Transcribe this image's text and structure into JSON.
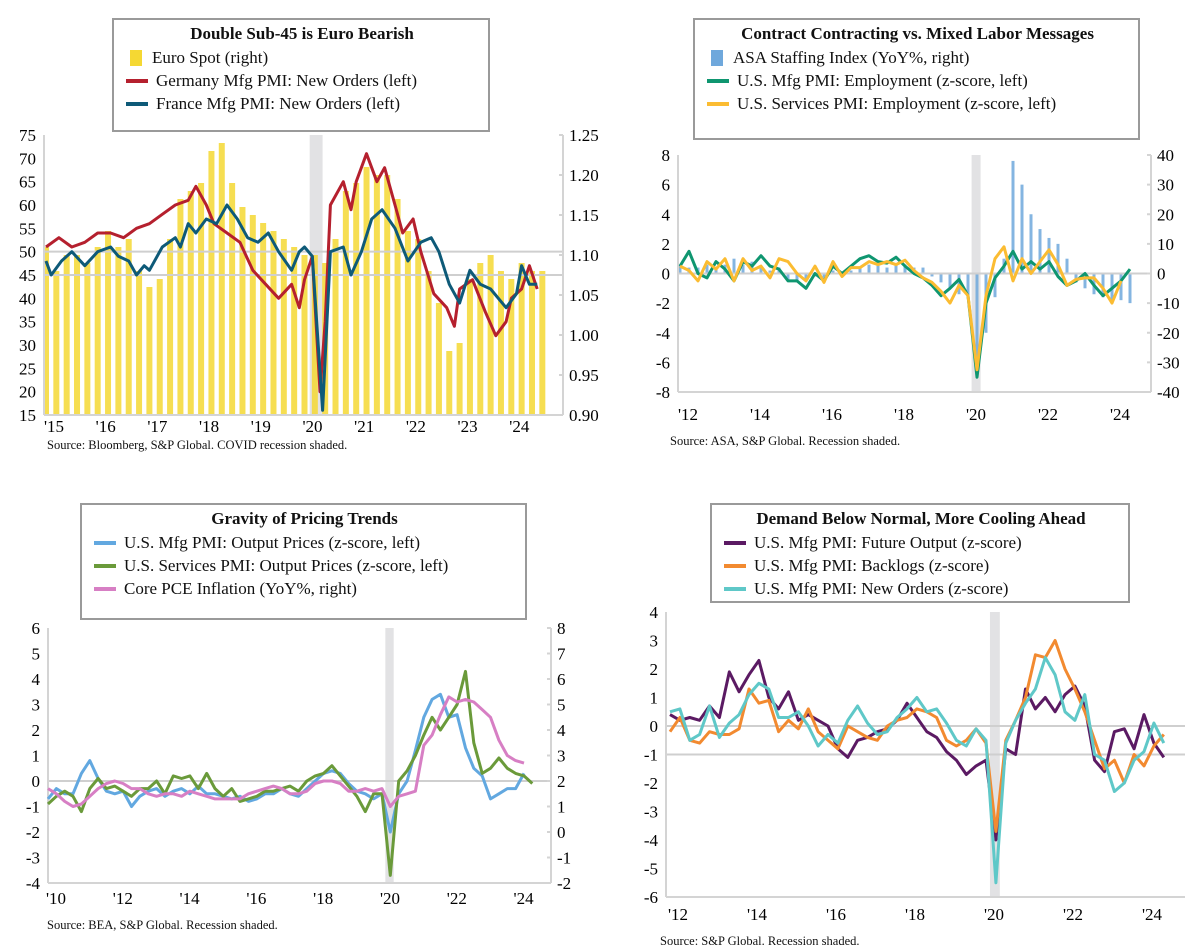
{
  "chart_data": [
    {
      "type": "bar+line",
      "title": "Double Sub-45 is Euro Bearish",
      "source": "Source: Bloomberg, S&P Global. COVID recession shaded.",
      "x_tick_labels": [
        "'15",
        "'16",
        "'17",
        "'18",
        "'19",
        "'20",
        "'21",
        "'22",
        "'23",
        "'24"
      ],
      "x_tick_years": [
        2015,
        2016,
        2017,
        2018,
        2019,
        2020,
        2021,
        2022,
        2023,
        2024
      ],
      "ylim_left": [
        15,
        75
      ],
      "y_ticks_left": [
        "75",
        "70",
        "65",
        "60",
        "55",
        "50",
        "45",
        "40",
        "35",
        "30",
        "25",
        "20",
        "15"
      ],
      "ylim_right": [
        0.9,
        1.25
      ],
      "y_ticks_right": [
        "1.25",
        "1.20",
        "1.15",
        "1.10",
        "1.05",
        "1.00",
        "0.95",
        "0.90"
      ],
      "reference_lines_left": [
        50,
        45
      ],
      "recession": [
        2020.1,
        2020.35
      ],
      "bars": {
        "name": "Euro Spot (right)",
        "color": "#f5d833",
        "axis": "right",
        "x_start": 2015,
        "step": 0.2,
        "values": [
          1.11,
          1.08,
          1.1,
          1.1,
          1.09,
          1.11,
          1.13,
          1.11,
          1.12,
          1.08,
          1.06,
          1.07,
          1.12,
          1.17,
          1.18,
          1.19,
          1.23,
          1.24,
          1.19,
          1.16,
          1.15,
          1.14,
          1.13,
          1.12,
          1.11,
          1.1,
          1.1,
          1.09,
          1.12,
          1.18,
          1.19,
          1.21,
          1.2,
          1.2,
          1.17,
          1.13,
          1.12,
          1.08,
          1.04,
          0.98,
          0.99,
          1.07,
          1.09,
          1.1,
          1.08,
          1.07,
          1.09,
          1.08,
          1.08
        ]
      },
      "series": [
        {
          "name": "Germany Mfg PMI: New Orders (left)",
          "color": "#b5202e",
          "axis": "left",
          "x": [
            2015,
            2015.25,
            2015.5,
            2015.75,
            2016,
            2016.25,
            2016.5,
            2016.75,
            2017,
            2017.25,
            2017.5,
            2017.75,
            2017.9,
            2018.1,
            2018.25,
            2018.5,
            2018.75,
            2019,
            2019.25,
            2019.5,
            2019.75,
            2019.9,
            2020,
            2020.15,
            2020.3,
            2020.4,
            2020.5,
            2020.75,
            2020.9,
            2021,
            2021.2,
            2021.4,
            2021.55,
            2021.75,
            2021.9,
            2022.1,
            2022.25,
            2022.5,
            2022.75,
            2022.9,
            2023,
            2023.25,
            2023.5,
            2023.7,
            2023.9,
            2024,
            2024.2,
            2024.35,
            2024.5
          ],
          "y": [
            51,
            53,
            51,
            52,
            54,
            54,
            53,
            55,
            56,
            58,
            60,
            61,
            64,
            60,
            56,
            54,
            52,
            46,
            43,
            40,
            43,
            38,
            44,
            49,
            20,
            35,
            60,
            65,
            59,
            65,
            71,
            65,
            68,
            60,
            54,
            57,
            50,
            41,
            38,
            34,
            42,
            44,
            37,
            32,
            35,
            40,
            42,
            47,
            42
          ]
        },
        {
          "name": "France Mfg PMI: New Orders (left)",
          "color": "#0e5a78",
          "axis": "left",
          "x": [
            2015,
            2015.1,
            2015.3,
            2015.5,
            2015.75,
            2016,
            2016.25,
            2016.4,
            2016.6,
            2016.75,
            2016.9,
            2017,
            2017.25,
            2017.5,
            2017.6,
            2017.75,
            2017.9,
            2018.1,
            2018.3,
            2018.5,
            2018.7,
            2018.9,
            2019.1,
            2019.3,
            2019.5,
            2019.75,
            2019.9,
            2020,
            2020.15,
            2020.35,
            2020.5,
            2020.75,
            2020.9,
            2021.1,
            2021.3,
            2021.5,
            2021.75,
            2022,
            2022.25,
            2022.45,
            2022.6,
            2022.8,
            2023,
            2023.2,
            2023.4,
            2023.6,
            2023.9,
            2024.1,
            2024.2,
            2024.35,
            2024.5
          ],
          "y": [
            48,
            45,
            48,
            50,
            47,
            50,
            51,
            49,
            48,
            45,
            47,
            46,
            51,
            53,
            51,
            56,
            54,
            57,
            56,
            60,
            57,
            53,
            52,
            54,
            50,
            46,
            50,
            51,
            49,
            16,
            50,
            51,
            45,
            50,
            57,
            59,
            55,
            48,
            52,
            53,
            50,
            43,
            39,
            46,
            43,
            42,
            38,
            41,
            47,
            43,
            43
          ]
        }
      ]
    },
    {
      "type": "bar+line",
      "title": "Contract Contracting vs. Mixed Labor Messages",
      "source": "Source: ASA, S&P Global. Recession shaded.",
      "x_tick_labels": [
        "'12",
        "'14",
        "'16",
        "'18",
        "'20",
        "'22",
        "'24"
      ],
      "x_tick_years": [
        2012,
        2014,
        2016,
        2018,
        2020,
        2022,
        2024
      ],
      "ylim_left": [
        -8,
        8
      ],
      "y_ticks_left": [
        "8",
        "6",
        "4",
        "2",
        "0",
        "-2",
        "-4",
        "-6",
        "-8"
      ],
      "ylim_right": [
        -40,
        40
      ],
      "y_ticks_right": [
        "40",
        "30",
        "20",
        "10",
        "0",
        "-10",
        "-20",
        "-30",
        "-40"
      ],
      "reference_lines_left": [
        0
      ],
      "recession": [
        2020.1,
        2020.35
      ],
      "bars": {
        "name": "ASA Staffing Index (YoY%, right)",
        "color": "#6fa8dc",
        "axis": "right",
        "x_start": 2012,
        "step": 0.25,
        "values": [
          3,
          2,
          2,
          3,
          2,
          3,
          5,
          3,
          4,
          2,
          1,
          2,
          -2,
          -3,
          -2,
          -1,
          -2,
          1,
          0,
          1,
          2,
          3,
          3,
          2,
          3,
          3,
          2,
          2,
          -1,
          -3,
          -5,
          -7,
          -8,
          -35,
          -20,
          -8,
          5,
          38,
          30,
          20,
          15,
          12,
          10,
          5,
          -3,
          -5,
          -7,
          -8,
          -10,
          -9,
          -10
        ]
      },
      "series": [
        {
          "name": "U.S. Mfg PMI: Employment (z-score, left)",
          "color": "#0f9670",
          "axis": "left",
          "x_start": 2012,
          "step": 0.25,
          "y": [
            0.5,
            1.5,
            0,
            -0.3,
            0.8,
            0.3,
            -0.5,
            0.8,
            0.5,
            1.2,
            0.5,
            0.3,
            -0.5,
            -0.5,
            -1,
            0,
            -0.5,
            0.5,
            0,
            0.5,
            1,
            1.2,
            0.8,
            0.7,
            1.1,
            0.5,
            0,
            -0.3,
            -0.8,
            -1.5,
            -1,
            -0.4,
            -1.5,
            -7,
            -2,
            -0.3,
            0.5,
            1.5,
            0.3,
            0.8,
            0.3,
            0.8,
            -0.2,
            -0.8,
            -0.5,
            0,
            -0.8,
            -1.5,
            -1,
            -0.5,
            0.3
          ]
        },
        {
          "name": "U.S. Services PMI: Employment (z-score, left)",
          "color": "#fbbc32",
          "axis": "left",
          "x_start": 2012,
          "step": 0.25,
          "y": [
            0.5,
            0.2,
            -0.5,
            0.8,
            0.3,
            1,
            -0.5,
            1,
            0.2,
            0.5,
            -0.3,
            1,
            0.8,
            0,
            -0.5,
            0.5,
            -0.6,
            0.8,
            -0.2,
            0.4,
            0.4,
            0.8,
            0.6,
            0.8,
            0.6,
            0.9,
            0.2,
            -0.3,
            -0.6,
            -1.2,
            -2,
            -0.8,
            -1.5,
            -6.5,
            -1.5,
            1,
            1.8,
            -0.5,
            1,
            0,
            0.8,
            1.6,
            0.6,
            -0.8,
            -0.4,
            -0.3,
            -0.3,
            -1,
            -2,
            -0.5
          ]
        }
      ]
    },
    {
      "type": "line",
      "title": "Gravity of Pricing Trends",
      "source": "Source: BEA, S&P Global. Recession shaded.",
      "x_tick_labels": [
        "'10",
        "'12",
        "'14",
        "'16",
        "'18",
        "'20",
        "'22",
        "'24"
      ],
      "x_tick_years": [
        2010,
        2012,
        2014,
        2016,
        2018,
        2020,
        2022,
        2024
      ],
      "ylim_left": [
        -4,
        6
      ],
      "y_ticks_left": [
        "6",
        "5",
        "4",
        "3",
        "2",
        "1",
        "0",
        "-1",
        "-2",
        "-3",
        "-4"
      ],
      "ylim_right": [
        -2,
        8
      ],
      "y_ticks_right": [
        "8",
        "7",
        "6",
        "5",
        "4",
        "3",
        "2",
        "1",
        "0",
        "-1",
        "-2"
      ],
      "reference_lines_left": [
        0
      ],
      "recession": [
        2020.1,
        2020.35
      ],
      "series": [
        {
          "name": "U.S. Mfg PMI: Output Prices (z-score, left)",
          "color": "#62a8e0",
          "axis": "left",
          "x_start": 2010,
          "step": 0.25,
          "y": [
            -0.7,
            -0.3,
            -0.5,
            -0.5,
            0.3,
            0.8,
            0.1,
            -0.4,
            -0.5,
            -0.4,
            -1,
            -0.6,
            -0.4,
            -0.3,
            -0.6,
            -0.4,
            -0.3,
            -0.5,
            -0.2,
            -0.5,
            -0.5,
            -0.6,
            -0.7,
            -0.6,
            -0.8,
            -0.7,
            -0.5,
            -0.5,
            -0.3,
            -0.5,
            -0.6,
            -0.3,
            0,
            0.3,
            0.4,
            0.3,
            -0.1,
            -0.4,
            -0.5,
            -0.7,
            -0.5,
            -2,
            -0.5,
            0,
            1.2,
            2.5,
            3.2,
            3.4,
            2.5,
            2.6,
            1.3,
            0.5,
            0.2,
            -0.7,
            -0.5,
            -0.3,
            -0.3,
            0.3
          ]
        },
        {
          "name": "U.S. Services PMI: Output Prices (z-score, left)",
          "color": "#6a9a3a",
          "axis": "left",
          "x_start": 2010,
          "step": 0.25,
          "y": [
            -0.9,
            -0.6,
            -0.4,
            -0.6,
            -1.2,
            -0.3,
            0.1,
            -0.3,
            -0.2,
            -0.4,
            -0.6,
            -0.3,
            -0.3,
            0,
            -0.5,
            0.2,
            0.1,
            0.2,
            -0.3,
            0.3,
            -0.3,
            -0.6,
            -0.3,
            -0.8,
            -0.7,
            -0.6,
            -0.4,
            -0.4,
            -0.3,
            -0.2,
            -0.4,
            0,
            0.2,
            0.3,
            0.6,
            0.2,
            -0.2,
            -0.6,
            -1.2,
            -0.5,
            -0.5,
            -3.7,
            0,
            0.4,
            1,
            1.8,
            2.5,
            2,
            2.5,
            3,
            4.3,
            1.5,
            0.3,
            0.5,
            0.9,
            0.5,
            0.3,
            0.2,
            -0.1
          ]
        },
        {
          "name": "Core PCE Inflation (YoY%, right)",
          "color": "#d77fc4",
          "axis": "right",
          "x_start": 2010,
          "step": 0.25,
          "y": [
            1.7,
            1.5,
            1.2,
            1.0,
            1.1,
            1.4,
            1.7,
            1.9,
            2.0,
            1.9,
            1.7,
            1.7,
            1.5,
            1.4,
            1.5,
            1.5,
            1.4,
            1.6,
            1.5,
            1.4,
            1.3,
            1.3,
            1.3,
            1.3,
            1.5,
            1.6,
            1.7,
            1.8,
            1.7,
            1.5,
            1.5,
            1.6,
            1.9,
            2.0,
            2.0,
            1.9,
            1.6,
            1.6,
            1.7,
            1.6,
            1.7,
            1.0,
            1.4,
            1.5,
            1.6,
            3.4,
            3.8,
            4.6,
            5.3,
            5.1,
            5.2,
            5.1,
            4.8,
            4.5,
            3.6,
            3.0,
            2.8,
            2.7
          ]
        }
      ]
    },
    {
      "type": "line",
      "title": "Demand Below Normal, More Cooling Ahead",
      "source": "Source: S&P Global. Recession shaded.",
      "x_tick_labels": [
        "'12",
        "'14",
        "'16",
        "'18",
        "'20",
        "'22",
        "'24"
      ],
      "x_tick_years": [
        2012,
        2014,
        2016,
        2018,
        2020,
        2022,
        2024
      ],
      "ylim_left": [
        -6,
        4
      ],
      "y_ticks_left": [
        "4",
        "3",
        "2",
        "1",
        "0",
        "-1",
        "-2",
        "-3",
        "-4",
        "-5",
        "-6"
      ],
      "reference_lines_left": [
        0,
        -1
      ],
      "recession": [
        2020.1,
        2020.35
      ],
      "series": [
        {
          "name": "U.S. Mfg PMI: Future Output (z-score)",
          "color": "#5b1a63",
          "axis": "left",
          "x_start": 2012,
          "step": 0.25,
          "y": [
            0.4,
            0.2,
            0.3,
            0.2,
            0.7,
            0.3,
            1.9,
            1.2,
            1.8,
            2.3,
            1.0,
            0.6,
            1.2,
            0.2,
            0.4,
            0.2,
            0,
            -0.8,
            -1.1,
            -0.5,
            -0.4,
            -0.2,
            -0.1,
            0.2,
            0.8,
            0.3,
            -0.2,
            -0.4,
            -0.9,
            -1.2,
            -1.7,
            -1.4,
            -1.2,
            -4,
            -0.8,
            -1.0,
            1.3,
            0.6,
            1.0,
            0.5,
            1.1,
            1.4,
            0.7,
            -1.2,
            -1.6,
            -0.2,
            -0.1,
            -0.8,
            0.4,
            -0.6,
            -1.1
          ]
        },
        {
          "name": "U.S. Mfg PMI: Backlogs (z-score)",
          "color": "#f28a30",
          "axis": "left",
          "x_start": 2012,
          "step": 0.25,
          "y": [
            -0.2,
            0.3,
            -0.5,
            -0.6,
            -0.2,
            -0.3,
            -0.3,
            -0.1,
            1.3,
            0.8,
            0.9,
            -0.2,
            0.2,
            -0.1,
            0.6,
            -0.2,
            -0.5,
            -0.8,
            0,
            -0.2,
            -0.4,
            -0.5,
            0,
            0.2,
            0.3,
            0.6,
            0.5,
            0.3,
            -0.5,
            -0.7,
            -0.5,
            -0.1,
            -0.6,
            -3.7,
            -0.5,
            0.2,
            1,
            2.5,
            2.4,
            3.0,
            2,
            1.3,
            0.5,
            -0.5,
            -1.5,
            -1.2,
            -2.0,
            -1.0,
            -1.4,
            -0.7,
            -0.3
          ]
        },
        {
          "name": "U.S. Mfg PMI: New Orders (z-score)",
          "color": "#5fc8c8",
          "axis": "left",
          "x_start": 2012,
          "step": 0.25,
          "y": [
            0.5,
            0.6,
            -0.5,
            -0.3,
            0.7,
            -0.4,
            0.1,
            0.4,
            1.1,
            1.5,
            1.3,
            0.3,
            0.3,
            0.5,
            0,
            -0.7,
            -0.3,
            -0.6,
            0.2,
            0.7,
            0.1,
            -0.3,
            -0.2,
            0.3,
            0.6,
            1.0,
            0.5,
            0.6,
            0.1,
            -0.5,
            -0.7,
            -0.1,
            -0.5,
            -5.5,
            -0.6,
            0.2,
            0.8,
            1.3,
            2.4,
            1.8,
            0.5,
            0.2,
            1.1,
            -1.0,
            -1.2,
            -2.3,
            -2.0,
            -1.2,
            -0.9,
            0.1,
            -0.6
          ]
        }
      ]
    }
  ]
}
